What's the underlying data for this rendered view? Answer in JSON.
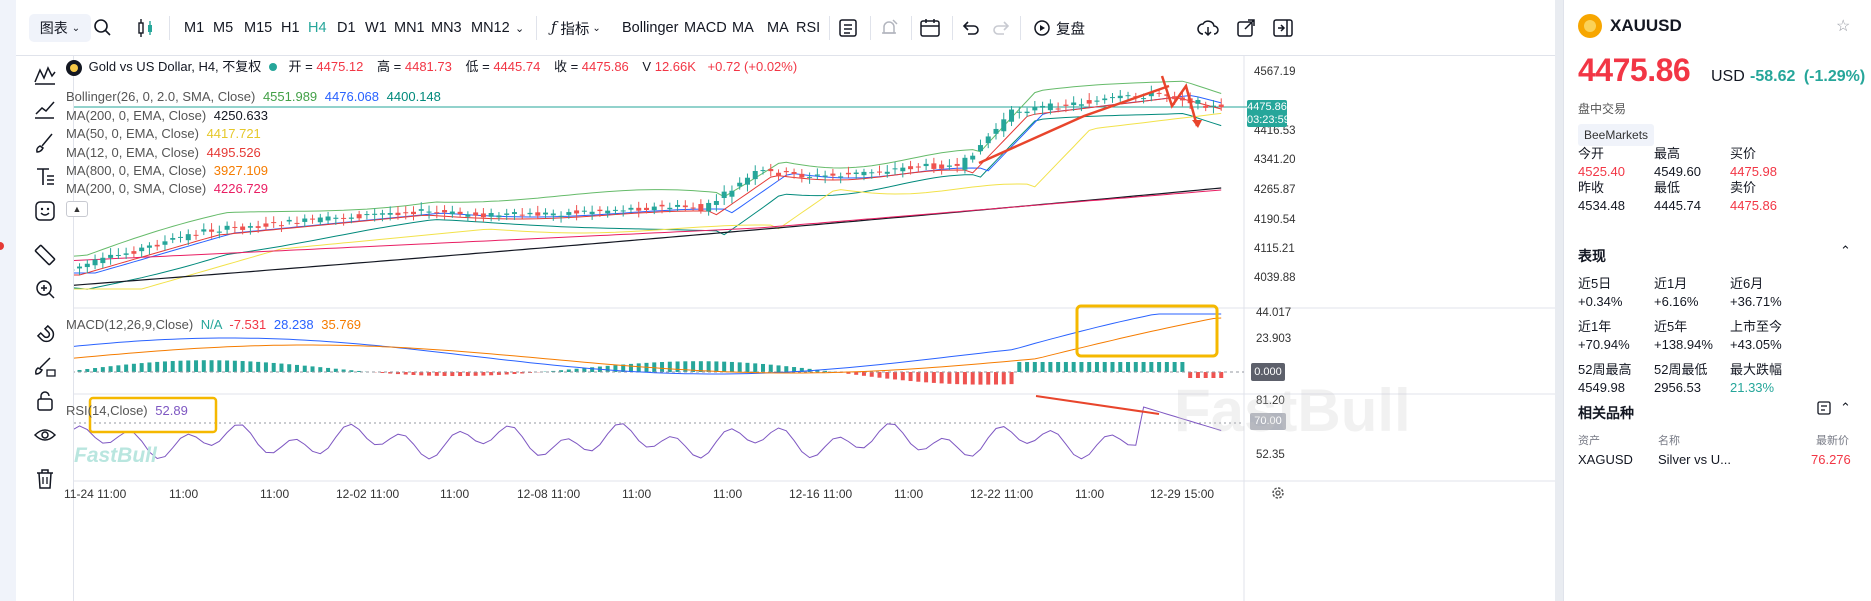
{
  "toolbar": {
    "chart_menu": "图表",
    "timeframes": [
      "M1",
      "M5",
      "M15",
      "H1",
      "H4",
      "D1",
      "W1",
      "MN1",
      "MN3",
      "MN12"
    ],
    "active_timeframe": "H4",
    "indicators_label": "指标",
    "indicator_shortcuts": [
      "Bollinger",
      "MACD",
      "MA",
      "MA",
      "RSI"
    ],
    "replay_label": "复盘"
  },
  "legend": {
    "symbol": "Gold vs US Dollar, H4, 不复权",
    "open_label": "开",
    "open": "4475.12",
    "high_label": "高",
    "high": "4481.73",
    "low_label": "低",
    "low": "4445.74",
    "close_label": "收",
    "close": "4475.86",
    "volume_label": "V",
    "volume": "12.66K",
    "change": "+0.72 (+0.02%)",
    "bollinger": {
      "name": "Bollinger(26, 0, 2.0, SMA, Close)",
      "upper": "4551.989",
      "mid": "4476.068",
      "lower": "4400.148"
    },
    "ma_rows": [
      {
        "name": "MA(200, 0, EMA, Close)",
        "value": "4250.633",
        "color": "#131722"
      },
      {
        "name": "MA(50, 0, EMA, Close)",
        "value": "4417.721",
        "color": "#e6c82a"
      },
      {
        "name": "MA(12, 0, EMA, Close)",
        "value": "4495.526",
        "color": "#e53935"
      },
      {
        "name": "MA(800, 0, EMA, Close)",
        "value": "3927.109",
        "color": "#f57c00"
      },
      {
        "name": "MA(200, 0, SMA, Close)",
        "value": "4226.729",
        "color": "#e91e63"
      }
    ],
    "macd": {
      "name": "MACD(12,26,9,Close)",
      "na": "N/A",
      "hist": "-7.531",
      "macd": "28.238",
      "signal": "35.769"
    },
    "rsi": {
      "name": "RSI(14,Close)",
      "value": "52.89"
    }
  },
  "price_scale": {
    "ticks": [
      "4567.19",
      "4416.53",
      "4341.20",
      "4265.87",
      "4190.54",
      "4115.21",
      "4039.88"
    ],
    "current_price": "4475.86",
    "countdown": "03:23:59",
    "macd_ticks": [
      "44.017",
      "23.903"
    ],
    "macd_zero": "0.000",
    "rsi_ticks": [
      "81.20",
      "52.35"
    ],
    "rsi_level": "70.00"
  },
  "time_axis": [
    "11-24 11:00",
    "11:00",
    "11:00",
    "12-02 11:00",
    "11:00",
    "12-08 11:00",
    "11:00",
    "11:00",
    "12-16 11:00",
    "11:00",
    "12-22 11:00",
    "11:00",
    "12-29 15:00"
  ],
  "watermark": "FastBull",
  "panel": {
    "symbol": "XAUUSD",
    "price": "4475.86",
    "currency": "USD",
    "change": "-58.62",
    "change_pct": "(-1.29%)",
    "status": "盘中交易",
    "badge": "BeeMarkets",
    "stats": [
      {
        "label": "今开",
        "value": "4525.40",
        "tone": "red"
      },
      {
        "label": "最高",
        "value": "4549.60",
        "tone": "dark"
      },
      {
        "label": "买价",
        "value": "4475.98",
        "tone": "red"
      },
      {
        "label": "昨收",
        "value": "4534.48",
        "tone": "dark"
      },
      {
        "label": "最低",
        "value": "4445.74",
        "tone": "dark"
      },
      {
        "label": "卖价",
        "value": "4475.86",
        "tone": "red"
      }
    ],
    "perf_title": "表现",
    "perf": [
      {
        "label": "近5日",
        "value": "+0.34%",
        "tone": "dark"
      },
      {
        "label": "近1月",
        "value": "+6.16%",
        "tone": "dark"
      },
      {
        "label": "近6月",
        "value": "+36.71%",
        "tone": "dark"
      },
      {
        "label": "近1年",
        "value": "+70.94%",
        "tone": "dark"
      },
      {
        "label": "近5年",
        "value": "+138.94%",
        "tone": "dark"
      },
      {
        "label": "上市至今",
        "value": "+43.05%",
        "tone": "dark"
      },
      {
        "label": "52周最高",
        "value": "4549.98",
        "tone": "dark"
      },
      {
        "label": "52周最低",
        "value": "2956.53",
        "tone": "dark"
      },
      {
        "label": "最大跌幅",
        "value": "21.33%",
        "tone": "green"
      }
    ],
    "related_title": "相关品种",
    "related_headers": [
      "资产",
      "名称",
      "最新价"
    ],
    "related_rows": [
      {
        "symbol": "XAGUSD",
        "name": "Silver vs U...",
        "price": "76.276"
      }
    ]
  }
}
